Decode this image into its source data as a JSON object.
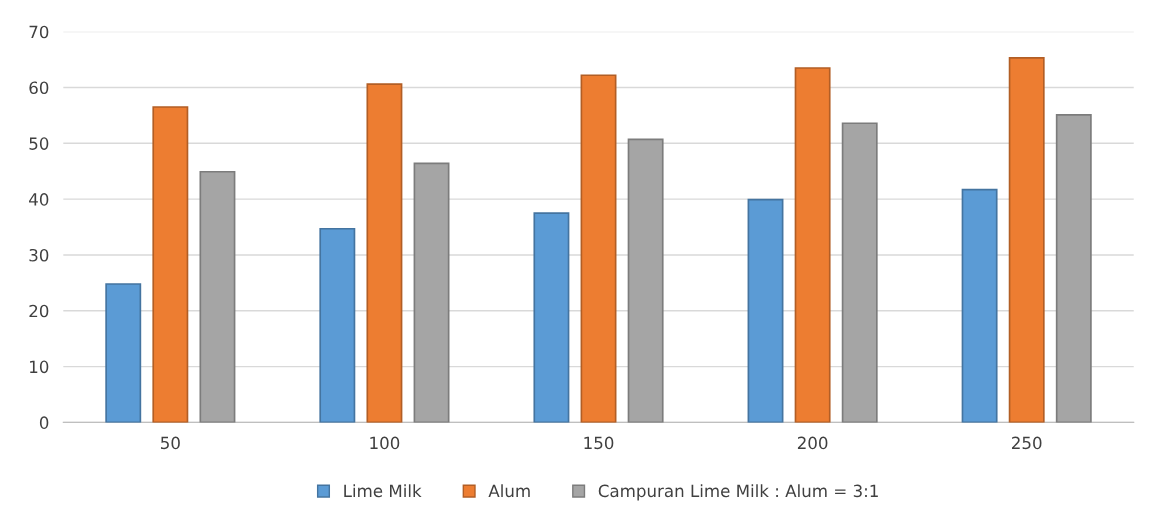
{
  "chart_data": {
    "type": "bar",
    "categories": [
      "50",
      "100",
      "150",
      "200",
      "250"
    ],
    "series": [
      {
        "name": "Lime Milk",
        "color": "#5b9bd5",
        "values": [
          24.8,
          34.7,
          37.5,
          39.9,
          41.7
        ]
      },
      {
        "name": "Alum",
        "color": "#ed7d31",
        "values": [
          56.5,
          60.6,
          62.2,
          63.5,
          65.3
        ]
      },
      {
        "name": "Campuran Lime Milk : Alum = 3:1",
        "color": "#a5a5a5",
        "values": [
          44.9,
          46.4,
          50.7,
          53.6,
          55.1
        ]
      }
    ],
    "ylim": [
      0,
      70
    ],
    "yticks": [
      0,
      10,
      20,
      30,
      40,
      50,
      60,
      70
    ],
    "grid": "y",
    "legend": "bottom"
  }
}
